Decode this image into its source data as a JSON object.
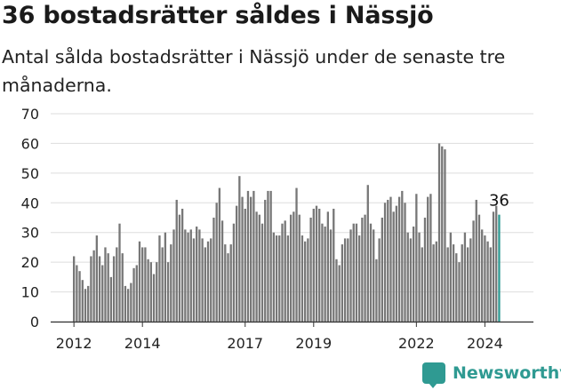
{
  "header": {
    "title": "36 bostadsrätter såldes i Nässjö",
    "subtitle": "Antal sålda bostadsrätter i Nässjö under de senaste tre månaderna."
  },
  "logo": {
    "text": "Newsworthy",
    "icon": "newsworthy-logo-icon"
  },
  "colors": {
    "bar": "#777777",
    "highlight": "#2f9a92",
    "grid": "#dddddd",
    "axis": "#333333"
  },
  "chart_data": {
    "type": "bar",
    "ylim": [
      0,
      70
    ],
    "yticks": [
      0,
      10,
      20,
      30,
      40,
      50,
      60,
      70
    ],
    "xticks": [
      {
        "label": "2012",
        "index": 0
      },
      {
        "label": "2014",
        "index": 24
      },
      {
        "label": "2017",
        "index": 60
      },
      {
        "label": "2019",
        "index": 84
      },
      {
        "label": "2022",
        "index": 120
      },
      {
        "label": "2024",
        "index": 144
      }
    ],
    "start": "2012-01",
    "highlight_label": "36",
    "values": [
      22,
      19,
      17,
      14,
      11,
      12,
      22,
      24,
      29,
      22,
      19,
      25,
      23,
      15,
      22,
      25,
      33,
      23,
      12,
      11,
      13,
      18,
      19,
      27,
      25,
      25,
      21,
      20,
      16,
      20,
      29,
      25,
      30,
      20,
      26,
      31,
      41,
      36,
      38,
      31,
      30,
      31,
      28,
      32,
      31,
      28,
      25,
      27,
      28,
      35,
      40,
      45,
      34,
      26,
      23,
      26,
      33,
      39,
      49,
      42,
      38,
      44,
      42,
      44,
      37,
      36,
      33,
      41,
      44,
      44,
      30,
      29,
      29,
      33,
      34,
      29,
      36,
      37,
      45,
      36,
      29,
      27,
      28,
      35,
      38,
      39,
      38,
      33,
      32,
      37,
      31,
      38,
      21,
      19,
      26,
      28,
      28,
      31,
      33,
      33,
      29,
      35,
      36,
      46,
      33,
      31,
      21,
      28,
      35,
      40,
      41,
      42,
      37,
      39,
      42,
      44,
      40,
      30,
      28,
      32,
      43,
      30,
      25,
      35,
      42,
      43,
      26,
      27,
      60,
      59,
      58,
      25,
      30,
      26,
      23,
      20,
      26,
      30,
      25,
      28,
      34,
      41,
      36,
      31,
      29,
      27,
      25,
      37,
      39,
      36
    ]
  }
}
